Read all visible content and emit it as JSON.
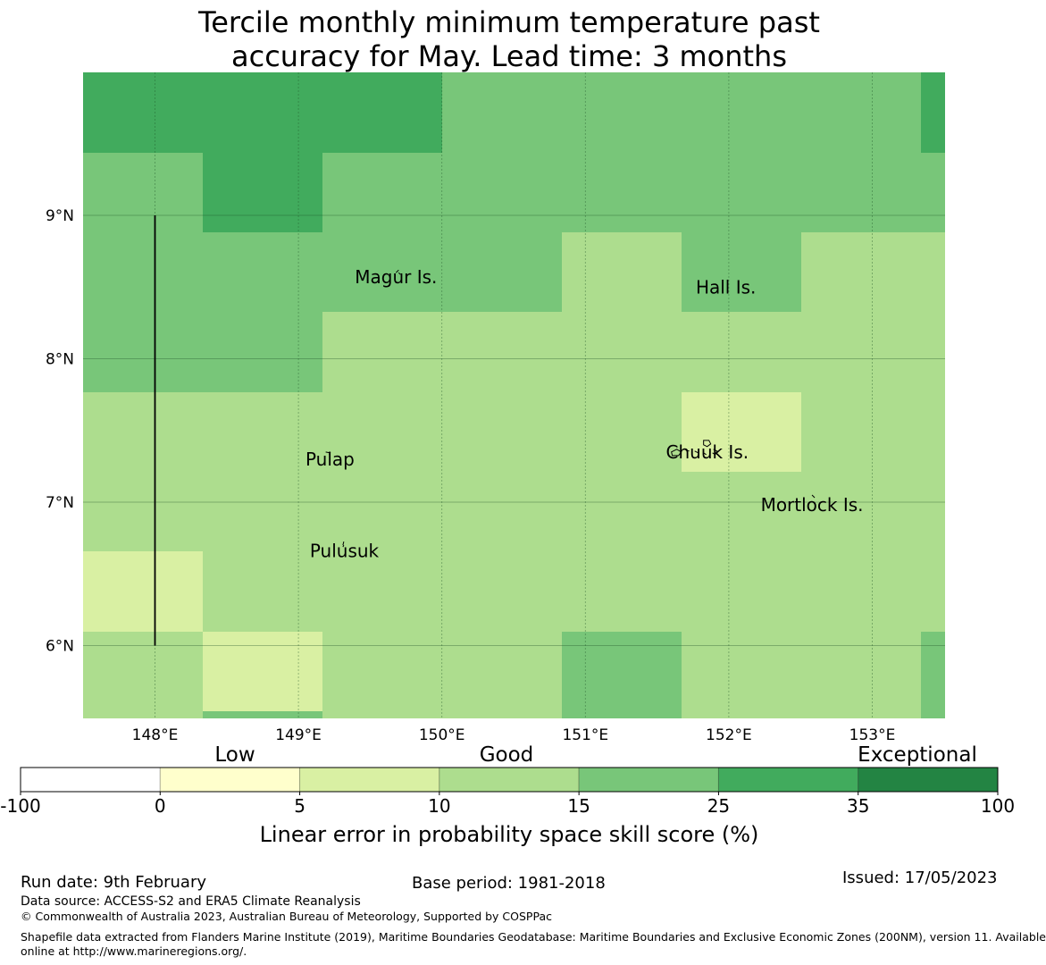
{
  "title": {
    "line1": "Tercile monthly minimum temperature past",
    "line2": "accuracy for May. Lead time: 3 months"
  },
  "map": {
    "extent": {
      "lon": [
        147.5,
        153.5
      ],
      "lat": [
        5.5,
        10.0
      ]
    },
    "cell_size_deg": 0.833,
    "grid_lons": [
      148,
      149,
      150,
      151,
      152,
      153
    ],
    "grid_lats": [
      6,
      7,
      8,
      9
    ],
    "lon_labels": [
      "148°E",
      "149°E",
      "150°E",
      "151°E",
      "152°E",
      "153°E"
    ],
    "lat_labels": [
      "6°N",
      "7°N",
      "8°N",
      "9°N"
    ],
    "score_grid_rows_north_to_south": [
      [
        5,
        5,
        5,
        4,
        4,
        4,
        4,
        5
      ],
      [
        4,
        5,
        4,
        4,
        4,
        4,
        4,
        4
      ],
      [
        4,
        4,
        4,
        4,
        3,
        4,
        3,
        3
      ],
      [
        4,
        4,
        3,
        3,
        3,
        3,
        3,
        3
      ],
      [
        3,
        3,
        3,
        3,
        3,
        2,
        3,
        3
      ],
      [
        3,
        3,
        3,
        3,
        3,
        3,
        3,
        3
      ],
      [
        2,
        3,
        3,
        3,
        3,
        3,
        3,
        3
      ],
      [
        3,
        2,
        3,
        3,
        4,
        3,
        3,
        4
      ]
    ],
    "boundary_line": {
      "lon": 148.0,
      "lat": [
        6.0,
        9.0
      ]
    },
    "islands": [
      {
        "name": "Magur Is.",
        "lon": 149.68,
        "lat": 8.57
      },
      {
        "name": "Hall Is.",
        "lon": 151.98,
        "lat": 8.5
      },
      {
        "name": "Pulap",
        "lon": 149.22,
        "lat": 7.3
      },
      {
        "name": "Chuuk Is.",
        "lon": 151.85,
        "lat": 7.35
      },
      {
        "name": "Mortlock Is.",
        "lon": 152.58,
        "lat": 6.98
      },
      {
        "name": "Pulusuk",
        "lon": 149.32,
        "lat": 6.66
      }
    ]
  },
  "colorbar": {
    "ticks": [
      "-100",
      "0",
      "5",
      "10",
      "15",
      "25",
      "35",
      "100"
    ],
    "colors": [
      "#ffffff",
      "#ffffcc",
      "#d9f0a3",
      "#addd8e",
      "#78c679",
      "#41ab5d",
      "#238443"
    ],
    "category_labels": [
      "Low",
      "Good",
      "Exceptional"
    ],
    "label": "Linear error in probability space skill score (%)"
  },
  "footer": {
    "run_date": "Run date: 9th February",
    "base_period": "Base period: 1981-2018",
    "issued": "Issued: 17/05/2023",
    "data_source": "Data source: ACCESS-S2 and ERA5 Climate Reanalysis",
    "copyright": "© Commonwealth of Australia 2023, Australian Bureau of Meteorology, Supported by COSPPac",
    "shapefile_line1": "Shapefile data extracted from Flanders Marine Institute (2019), Maritime Boundaries Geodatabase: Maritime Boundaries and Exclusive Economic Zones (200NM), version 11. Available",
    "shapefile_line2": "online at http://www.marineregions.org/."
  }
}
